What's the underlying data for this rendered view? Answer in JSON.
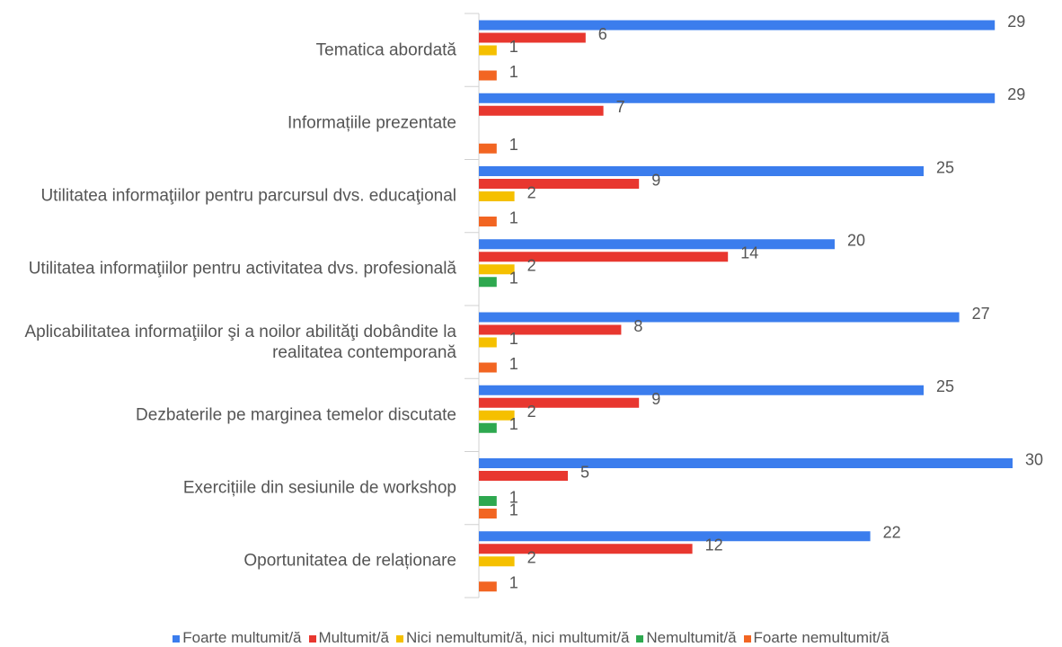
{
  "chart_data": {
    "type": "bar",
    "orientation": "horizontal",
    "categories": [
      "Tematica abordată",
      "Informațiile prezentate",
      "Utilitatea informaţiilor pentru parcursul dvs. educaţional",
      "Utilitatea informaţiilor pentru activitatea dvs. profesională",
      "Aplicabilitatea informaţiilor şi a noilor abilităţi dobândite la realitatea contemporană",
      "Dezbaterile pe marginea temelor discutate",
      "Exercițiile din sesiunile de workshop",
      "Oportunitatea de relaționare"
    ],
    "series": [
      {
        "name": "Foarte multumit/ă",
        "color": "#3b7ded",
        "values": [
          29,
          29,
          25,
          20,
          27,
          25,
          30,
          22
        ]
      },
      {
        "name": "Multumit/ă",
        "color": "#e8372f",
        "values": [
          6,
          7,
          9,
          14,
          8,
          9,
          5,
          12
        ]
      },
      {
        "name": "Nici nemultumit/ă, nici multumit/ă",
        "color": "#f5c000",
        "values": [
          1,
          null,
          2,
          2,
          1,
          2,
          null,
          2
        ]
      },
      {
        "name": "Nemultumit/ă",
        "color": "#2ea84f",
        "values": [
          null,
          null,
          null,
          1,
          null,
          1,
          1,
          null
        ]
      },
      {
        "name": "Foarte nemultumit/ă",
        "color": "#f26522",
        "values": [
          1,
          1,
          1,
          null,
          1,
          null,
          1,
          1
        ]
      }
    ],
    "legend": "bottom"
  }
}
